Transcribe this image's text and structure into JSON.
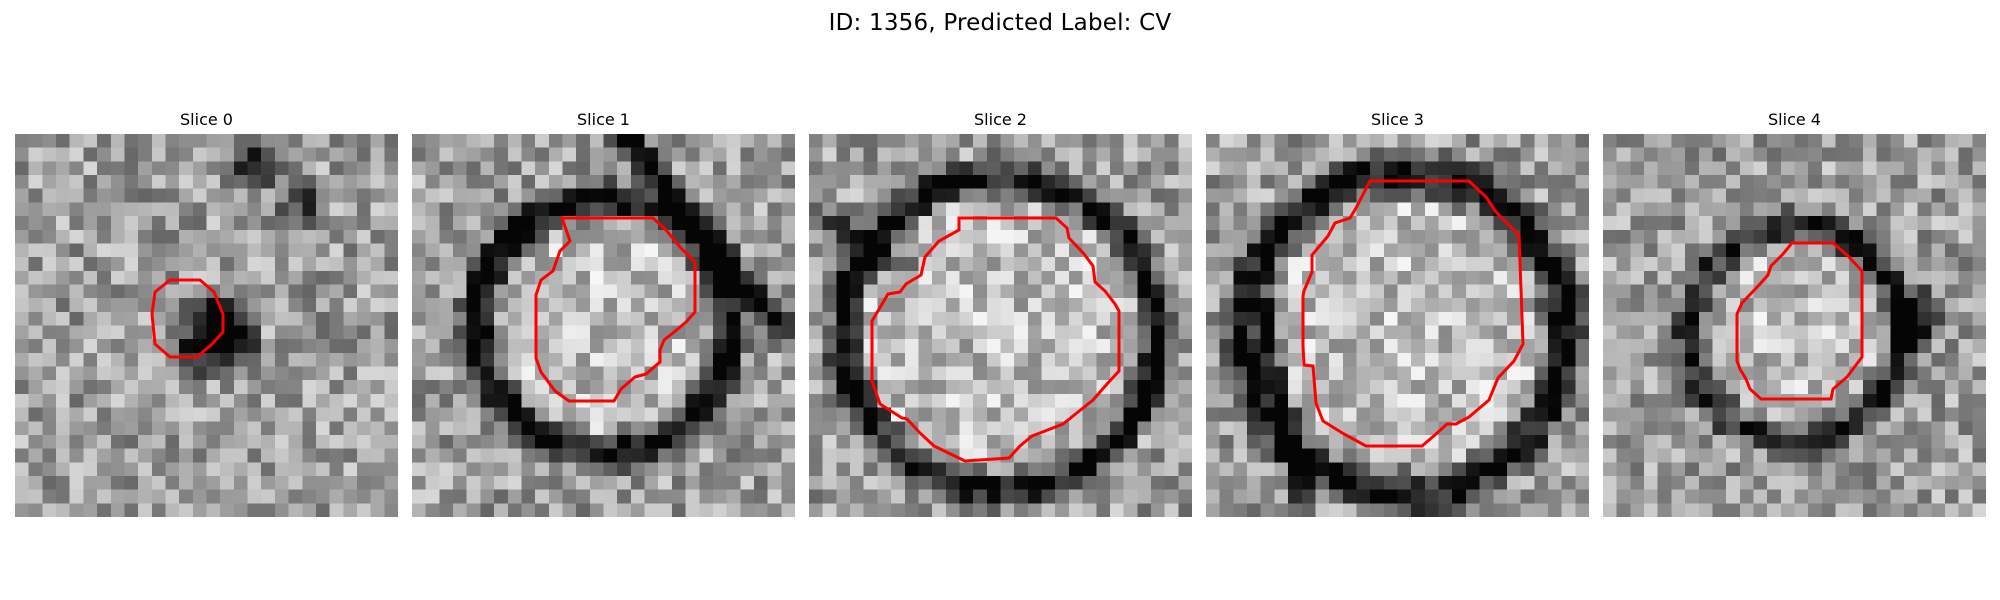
{
  "figure": {
    "title": "ID: 1356, Predicted Label: CV"
  },
  "panels": [
    {
      "title": "Slice 0"
    },
    {
      "title": "Slice 1"
    },
    {
      "title": "Slice 2"
    },
    {
      "title": "Slice 3"
    },
    {
      "title": "Slice 4"
    }
  ],
  "colors": {
    "background": "#ffffff",
    "contour": "#ff0000",
    "text": "#000000"
  }
}
